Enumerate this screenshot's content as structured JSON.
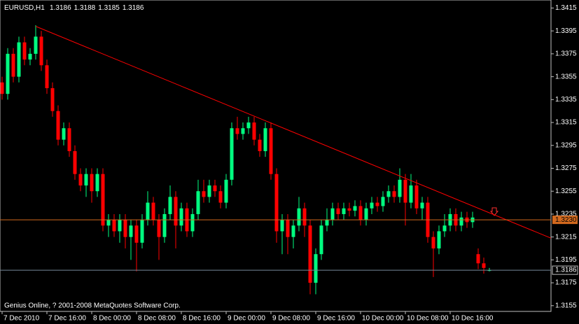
{
  "chart_data": {
    "type": "candlestick",
    "title": "EURUSD,H1",
    "footer": "Genius Online, ? 2001-2008 MetaQuotes Software Corp.",
    "categories": [
      "7 Dec 2010",
      null,
      null,
      null,
      null,
      null,
      null,
      null,
      "7 Dec 16:00",
      null,
      null,
      null,
      null,
      null,
      null,
      null,
      "8 Dec 00:00",
      null,
      null,
      null,
      null,
      null,
      null,
      null,
      "8 Dec 08:00",
      null,
      null,
      null,
      null,
      null,
      null,
      null,
      "8 Dec 16:00",
      null,
      null,
      null,
      null,
      null,
      null,
      null,
      "9 Dec 00:00",
      null,
      null,
      null,
      null,
      null,
      null,
      null,
      "9 Dec 08:00",
      null,
      null,
      null,
      null,
      null,
      null,
      null,
      "9 Dec 16:00",
      null,
      null,
      null,
      null,
      null,
      null,
      null,
      "10 Dec 00:00",
      null,
      null,
      null,
      null,
      null,
      null,
      null,
      "10 Dec 08:00",
      null,
      null,
      null,
      null,
      null,
      null,
      null,
      "10 Dec 16:00",
      null,
      null,
      null,
      null,
      null,
      null,
      null
    ],
    "open": [
      1.335,
      1.334,
      1.3375,
      1.3355,
      1.3385,
      1.337,
      1.3375,
      1.339,
      1.3365,
      1.3345,
      1.3325,
      1.33,
      1.331,
      1.329,
      1.327,
      1.326,
      1.327,
      1.3255,
      1.327,
      1.3225,
      1.323,
      1.322,
      1.323,
      1.3215,
      1.3225,
      1.321,
      1.323,
      1.3245,
      1.323,
      1.3215,
      1.3235,
      1.325,
      1.3225,
      1.324,
      1.322,
      1.3235,
      1.3255,
      1.325,
      1.326,
      1.3255,
      1.3245,
      1.3265,
      1.331,
      1.3305,
      1.331,
      1.3315,
      1.33,
      1.329,
      1.331,
      1.327,
      1.322,
      1.323,
      1.3215,
      1.3225,
      1.324,
      1.3225,
      1.3175,
      1.32,
      1.3225,
      1.323,
      1.324,
      1.3235,
      1.324,
      1.3238,
      1.3242,
      1.323,
      1.324,
      1.3245,
      1.3242,
      1.325,
      1.3255,
      1.325,
      1.3265,
      1.3245,
      1.326,
      1.324,
      1.3245,
      1.3215,
      1.3205,
      1.322,
      1.3225,
      1.3235,
      1.3225,
      1.3232,
      1.3228,
      1.32,
      1.3192,
      1.3186
    ],
    "high": [
      1.3355,
      1.338,
      1.338,
      1.339,
      1.339,
      1.338,
      1.34,
      1.3395,
      1.337,
      1.335,
      1.333,
      1.3315,
      1.3315,
      1.3295,
      1.3275,
      1.3275,
      1.3275,
      1.3275,
      1.3275,
      1.3235,
      1.3235,
      1.3235,
      1.3235,
      1.323,
      1.323,
      1.3235,
      1.3255,
      1.325,
      1.3235,
      1.324,
      1.326,
      1.3255,
      1.3245,
      1.3245,
      1.324,
      1.3265,
      1.3265,
      1.3265,
      1.3265,
      1.326,
      1.327,
      1.3315,
      1.332,
      1.3315,
      1.332,
      1.332,
      1.3305,
      1.3315,
      1.3315,
      1.3275,
      1.3235,
      1.3235,
      1.323,
      1.325,
      1.3245,
      1.323,
      1.3205,
      1.323,
      1.324,
      1.3245,
      1.3245,
      1.3245,
      1.3245,
      1.3247,
      1.3247,
      1.3245,
      1.325,
      1.325,
      1.3255,
      1.326,
      1.326,
      1.3275,
      1.327,
      1.327,
      1.3265,
      1.325,
      1.325,
      1.322,
      1.3225,
      1.3235,
      1.324,
      1.324,
      1.3237,
      1.3237,
      1.3237,
      1.3205,
      1.3197,
      1.3188
    ],
    "low": [
      1.3335,
      1.3335,
      1.335,
      1.335,
      1.3365,
      1.3365,
      1.337,
      1.336,
      1.334,
      1.332,
      1.3295,
      1.3295,
      1.3285,
      1.3265,
      1.3255,
      1.325,
      1.3245,
      1.325,
      1.322,
      1.3215,
      1.3215,
      1.321,
      1.3205,
      1.3195,
      1.3185,
      1.3205,
      1.3225,
      1.3225,
      1.3195,
      1.321,
      1.323,
      1.3205,
      1.322,
      1.3215,
      1.3215,
      1.323,
      1.3245,
      1.3245,
      1.325,
      1.324,
      1.324,
      1.326,
      1.33,
      1.33,
      1.3305,
      1.3295,
      1.3285,
      1.3285,
      1.3265,
      1.321,
      1.32,
      1.32,
      1.3205,
      1.322,
      1.3215,
      1.3165,
      1.3165,
      1.3195,
      1.322,
      1.3225,
      1.323,
      1.323,
      1.3233,
      1.3233,
      1.3225,
      1.3225,
      1.3235,
      1.3237,
      1.3237,
      1.3245,
      1.3245,
      1.3245,
      1.3225,
      1.324,
      1.3235,
      1.323,
      1.321,
      1.318,
      1.32,
      1.3215,
      1.322,
      1.322,
      1.322,
      1.3223,
      1.3223,
      1.3187,
      1.3183,
      1.3185
    ],
    "close": [
      1.334,
      1.3375,
      1.3355,
      1.3385,
      1.337,
      1.3375,
      1.339,
      1.3365,
      1.3345,
      1.3325,
      1.33,
      1.331,
      1.329,
      1.327,
      1.326,
      1.327,
      1.3255,
      1.327,
      1.3225,
      1.323,
      1.322,
      1.323,
      1.3215,
      1.3225,
      1.321,
      1.323,
      1.3245,
      1.323,
      1.3215,
      1.3235,
      1.325,
      1.3225,
      1.324,
      1.322,
      1.3235,
      1.3255,
      1.325,
      1.326,
      1.3255,
      1.3245,
      1.3265,
      1.331,
      1.3305,
      1.331,
      1.3315,
      1.33,
      1.329,
      1.331,
      1.327,
      1.322,
      1.323,
      1.3215,
      1.3225,
      1.324,
      1.3225,
      1.3175,
      1.32,
      1.3225,
      1.323,
      1.324,
      1.3235,
      1.324,
      1.3238,
      1.3242,
      1.323,
      1.324,
      1.3245,
      1.3242,
      1.325,
      1.3255,
      1.325,
      1.3265,
      1.3245,
      1.326,
      1.324,
      1.3245,
      1.3215,
      1.3205,
      1.322,
      1.3225,
      1.3235,
      1.3225,
      1.3232,
      1.3228,
      1.3232,
      1.3192,
      1.3188,
      1.3186
    ],
    "up_color": "#00ff80",
    "down_color": "#ff0000",
    "ylim": [
      1.315,
      1.3422
    ],
    "yticks": [
      1.3415,
      1.3395,
      1.3375,
      1.3355,
      1.3335,
      1.3315,
      1.3295,
      1.3275,
      1.3255,
      1.3235,
      1.3215,
      1.3195,
      1.3175,
      1.3155
    ],
    "hlines": [
      {
        "value": 1.323,
        "label": "1.3230",
        "color": "#d2691e"
      },
      {
        "value": 1.3186,
        "color": "#778899"
      }
    ],
    "trendline": {
      "x": [
        6,
        98
      ],
      "y": [
        1.3399,
        1.3214
      ],
      "color": "#ff0000"
    }
  }
}
